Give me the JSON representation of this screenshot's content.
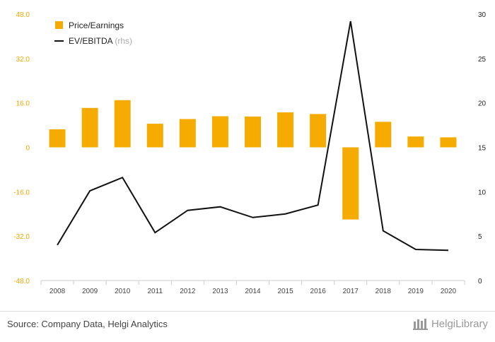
{
  "chart_data": {
    "type": "bar",
    "categories": [
      "2008",
      "2009",
      "2010",
      "2011",
      "2012",
      "2013",
      "2014",
      "2015",
      "2016",
      "2017",
      "2018",
      "2019",
      "2020"
    ],
    "series": [
      {
        "name": "Price/Earnings",
        "type": "bar",
        "axis": "left",
        "color": "#f5ab00",
        "values": [
          6.5,
          14.2,
          17.0,
          8.5,
          10.2,
          11.2,
          11.1,
          12.6,
          12.0,
          -26.0,
          9.2,
          3.9,
          3.6
        ]
      },
      {
        "name": "EV/EBITDA",
        "name_suffix": "(rhs)",
        "type": "line",
        "axis": "right",
        "color": "#111111",
        "values": [
          4.0,
          10.1,
          11.6,
          5.4,
          7.9,
          8.3,
          7.1,
          7.5,
          8.5,
          29.2,
          5.6,
          3.5,
          3.4
        ]
      }
    ],
    "y_left": {
      "ylim": [
        -48,
        48
      ],
      "ticks": [
        48,
        32,
        16,
        0,
        -16,
        -32,
        -48
      ],
      "tick_labels": [
        "48.0",
        "32.0",
        "16.0",
        "0",
        "-16.0",
        "-32.0",
        "-48.0"
      ]
    },
    "y_right": {
      "ylim": [
        0,
        30
      ],
      "ticks": [
        30,
        25,
        20,
        15,
        10,
        5,
        0
      ],
      "tick_labels": [
        "30",
        "25",
        "20",
        "15",
        "10",
        "5",
        "0"
      ]
    },
    "legend_position": "top-left",
    "grid": false
  },
  "footer": {
    "source": "Source: Company Data, Helgi Analytics",
    "brand": "HelgiLibrary"
  },
  "colors": {
    "bar": "#f5ab00",
    "line": "#111111",
    "left_axis_text": "#f0a800"
  }
}
